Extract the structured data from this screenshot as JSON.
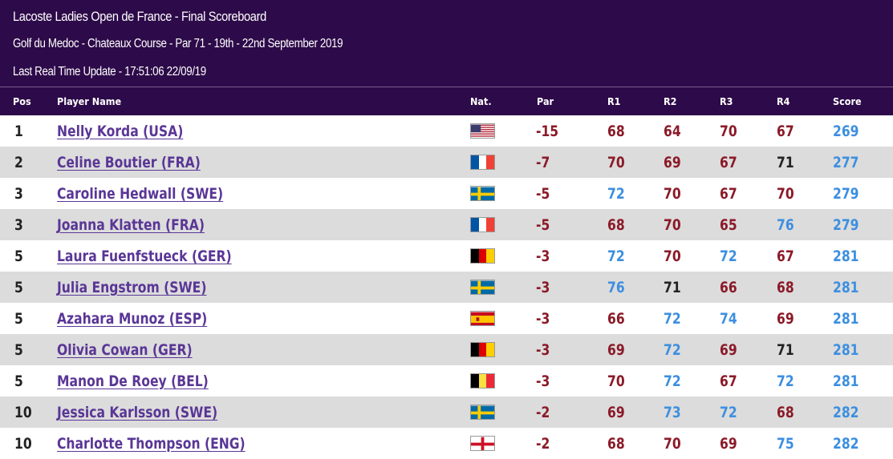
{
  "header": {
    "title": "Lacoste Ladies Open de France - Final Scoreboard",
    "subtitle": "Golf du Medoc - Chateaux Course - Par 71 - 19th - 22nd September 2019",
    "update": "Last Real Time Update - 17:51:06 22/09/19"
  },
  "columns": {
    "pos": "Pos",
    "player": "Player Name",
    "nat": "Nat.",
    "par": "Par",
    "r1": "R1",
    "r2": "R2",
    "r3": "R3",
    "r4": "R4",
    "score": "Score"
  },
  "colors": {
    "header_bg": "#2d0a49",
    "under_par": "#8b1a28",
    "over_par": "#3d8fe0",
    "even_par": "#222222",
    "player_link": "#5a3696",
    "alt_row": "#dcdcdc"
  },
  "rows": [
    {
      "pos": "1",
      "name": "Nelly Korda (USA)",
      "nat": "usa-flag",
      "par": "-15",
      "r1": "68",
      "r2": "64",
      "r3": "70",
      "r4": "67",
      "score": "269"
    },
    {
      "pos": "2",
      "name": "Celine Boutier (FRA)",
      "nat": "france-flag",
      "par": "-7",
      "r1": "70",
      "r2": "69",
      "r3": "67",
      "r4": "71",
      "score": "277"
    },
    {
      "pos": "3",
      "name": "Caroline Hedwall (SWE)",
      "nat": "sweden-flag",
      "par": "-5",
      "r1": "72",
      "r2": "70",
      "r3": "67",
      "r4": "70",
      "score": "279"
    },
    {
      "pos": "3",
      "name": "Joanna Klatten (FRA)",
      "nat": "france-flag",
      "par": "-5",
      "r1": "68",
      "r2": "70",
      "r3": "65",
      "r4": "76",
      "score": "279"
    },
    {
      "pos": "5",
      "name": "Laura Fuenfstueck (GER)",
      "nat": "germany-flag",
      "par": "-3",
      "r1": "72",
      "r2": "70",
      "r3": "72",
      "r4": "67",
      "score": "281"
    },
    {
      "pos": "5",
      "name": "Julia Engstrom (SWE)",
      "nat": "sweden-flag",
      "par": "-3",
      "r1": "76",
      "r2": "71",
      "r3": "66",
      "r4": "68",
      "score": "281"
    },
    {
      "pos": "5",
      "name": "Azahara Munoz (ESP)",
      "nat": "spain-flag",
      "par": "-3",
      "r1": "66",
      "r2": "72",
      "r3": "74",
      "r4": "69",
      "score": "281"
    },
    {
      "pos": "5",
      "name": "Olivia Cowan (GER)",
      "nat": "germany-flag",
      "par": "-3",
      "r1": "69",
      "r2": "72",
      "r3": "69",
      "r4": "71",
      "score": "281"
    },
    {
      "pos": "5",
      "name": "Manon De Roey (BEL)",
      "nat": "belgium-flag",
      "par": "-3",
      "r1": "70",
      "r2": "72",
      "r3": "67",
      "r4": "72",
      "score": "281"
    },
    {
      "pos": "10",
      "name": "Jessica Karlsson (SWE)",
      "nat": "sweden-flag",
      "par": "-2",
      "r1": "69",
      "r2": "73",
      "r3": "72",
      "r4": "68",
      "score": "282"
    },
    {
      "pos": "10",
      "name": "Charlotte Thompson (ENG)",
      "nat": "england-flag",
      "par": "-2",
      "r1": "68",
      "r2": "70",
      "r3": "69",
      "r4": "75",
      "score": "282"
    }
  ]
}
